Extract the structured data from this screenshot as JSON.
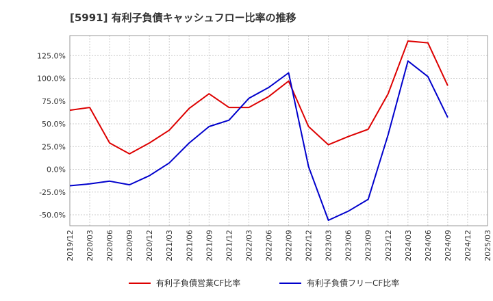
{
  "chart_data": {
    "type": "line",
    "title": "[5991]  有利子負債キャッシュフロー比率の推移",
    "x": [
      "2019/12",
      "2020/03",
      "2020/06",
      "2020/09",
      "2020/12",
      "2021/03",
      "2021/06",
      "2021/09",
      "2021/12",
      "2022/03",
      "2022/06",
      "2022/09",
      "2022/12",
      "2023/03",
      "2023/06",
      "2023/09",
      "2023/12",
      "2024/03",
      "2024/06",
      "2024/09",
      "2024/12",
      "2025/03"
    ],
    "x_ticks": [
      "2019/12",
      "2020/03",
      "2020/06",
      "2020/09",
      "2020/12",
      "2021/03",
      "2021/06",
      "2021/09",
      "2021/12",
      "2022/03",
      "2022/06",
      "2022/09",
      "2022/12",
      "2023/03",
      "2023/06",
      "2023/09",
      "2023/12",
      "2024/03",
      "2024/06",
      "2024/09",
      "2024/12",
      "2025/03"
    ],
    "y_ticks": [
      "125.0%",
      "100.0%",
      "75.0%",
      "50.0%",
      "25.0%",
      "0.0%",
      "-25.0%",
      "-50.0%"
    ],
    "y_tick_values": [
      125,
      100,
      75,
      50,
      25,
      0,
      -25,
      -50
    ],
    "ylim": [
      -62,
      147
    ],
    "grid": true,
    "legend_position": "bottom",
    "series": [
      {
        "name": "有利子負債営業CF比率",
        "color": "#dd0000",
        "values": [
          65,
          68,
          29,
          17,
          29,
          43,
          67,
          83,
          68,
          68,
          80,
          97,
          47,
          27,
          36,
          44,
          83,
          141,
          139,
          92,
          null,
          null
        ]
      },
      {
        "name": "有利子負債フリーCF比率",
        "color": "#0000cc",
        "values": [
          -18,
          -16,
          -13,
          -17,
          -7,
          7,
          29,
          47,
          54,
          78,
          90,
          106,
          3,
          -56,
          -46,
          -33,
          38,
          119,
          102,
          57,
          null,
          null
        ]
      }
    ]
  }
}
